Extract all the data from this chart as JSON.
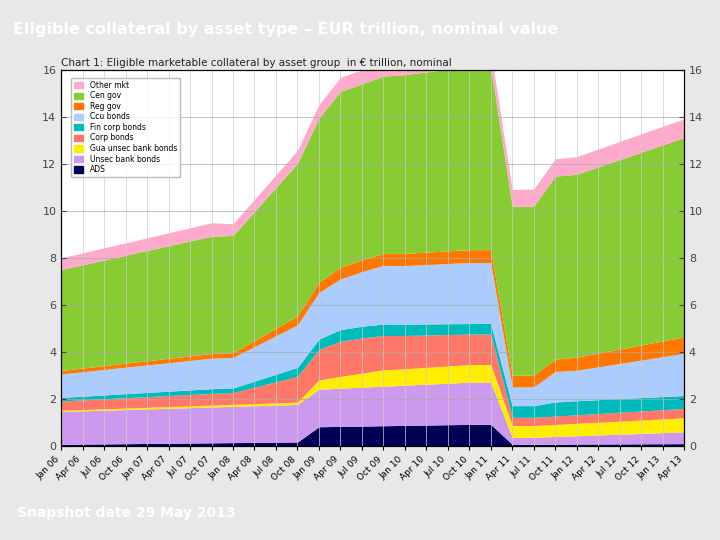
{
  "title": "Eligible collateral by asset type – EUR trillion, nominal value",
  "subtitle": "Chart 1: Eligible marketable collateral by asset group  in € trillion, nominal",
  "snapshot_text": "Snapshot date 29 May 2013",
  "header_bg": "#1c3f6e",
  "header_text": "#ffffff",
  "page_bg": "#e8e8e8",
  "chart_bg": "#ffffff",
  "ylim": [
    0,
    16
  ],
  "yticks": [
    0,
    2,
    4,
    6,
    8,
    10,
    12,
    14,
    16
  ],
  "legend_labels": [
    "Other mkt",
    "Cen gov",
    "Reg gov",
    "Ccu bonds",
    "Fin corp bonds",
    "Corp bonds",
    "Gua unsec bank bonds",
    "Unsec bank bonds",
    "ADS"
  ],
  "legend_colors": [
    "#ffaacc",
    "#88cc33",
    "#ff7700",
    "#aaccff",
    "#00bbbb",
    "#ff7766",
    "#ffee00",
    "#cc99ee",
    "#000055"
  ],
  "series_colors_btop": [
    "#000055",
    "#cc99ee",
    "#ffee00",
    "#ff7766",
    "#00bbbb",
    "#aaccff",
    "#ff7700",
    "#88cc33",
    "#ffaacc"
  ],
  "x_tick_labels": [
    "Jan 06",
    "Apr 06",
    "Jul 06",
    "Oct 06",
    "Jan 07",
    "Apr 07",
    "Jul 07",
    "Oct 07",
    "Jan 08",
    "Apr 08",
    "Jul 08",
    "Oct 08",
    "Jan 09",
    "Apr 09",
    "Jul 09",
    "Oct 09",
    "Jan 10",
    "Apr 10",
    "Jul 10",
    "Oct 10",
    "Jan 11",
    "Apr 11",
    "Jul 11",
    "Oct 11",
    "Jan 12",
    "Apr 12",
    "Jul 12",
    "Oct 12",
    "Jan 13",
    "Apr 13"
  ]
}
